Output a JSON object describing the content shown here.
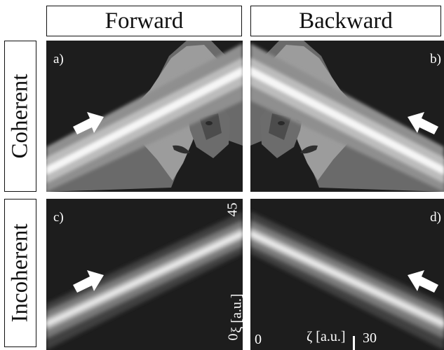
{
  "columns": {
    "forward": "Forward",
    "backward": "Backward"
  },
  "rows": {
    "coherent": "Coherent",
    "incoherent": "Incoherent"
  },
  "panels": {
    "a": "a)",
    "b": "b)",
    "c": "c)",
    "d": "d)"
  },
  "axes": {
    "xi_label": "ξ [a.u.]",
    "xi_min": "0",
    "xi_max": "45",
    "zeta_label": "ζ [a.u.]",
    "zeta_min": "0",
    "zeta_max": "30"
  }
}
